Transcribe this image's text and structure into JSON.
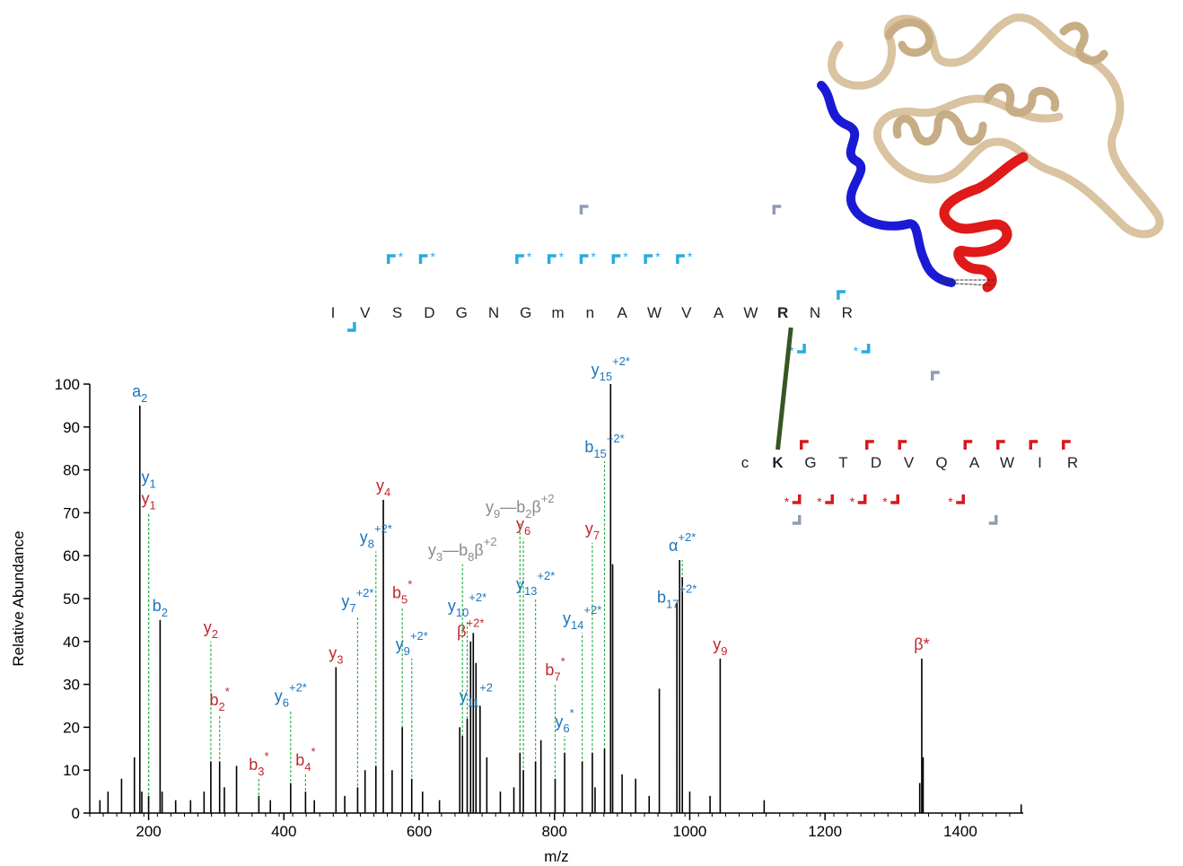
{
  "chart_data": {
    "type": "spectrum",
    "xlabel": "m/z",
    "ylabel": "Relative Abundance",
    "xlim": [
      113,
      1493
    ],
    "ylim": [
      0,
      100
    ],
    "xticks": [
      200,
      400,
      600,
      800,
      1000,
      1200,
      1400
    ],
    "yticks": [
      0,
      10,
      20,
      30,
      40,
      50,
      60,
      70,
      80,
      90,
      100
    ],
    "color": "#000000",
    "annotation_line_color": "#33b552",
    "x": [
      128,
      140,
      160,
      179,
      187,
      190,
      200,
      217,
      220,
      240,
      262,
      282,
      292,
      305,
      312,
      330,
      363,
      380,
      410,
      432,
      445,
      477,
      490,
      509,
      520,
      536,
      547,
      560,
      575,
      589,
      605,
      630,
      660,
      664,
      671,
      676,
      680,
      684,
      690,
      700,
      720,
      740,
      749,
      754,
      772,
      780,
      801,
      815,
      841,
      856,
      860,
      874,
      883,
      886,
      900,
      920,
      940,
      955,
      981,
      985,
      989,
      1000,
      1030,
      1045,
      1110,
      1340,
      1343,
      1345,
      1490
    ],
    "values": [
      3,
      5,
      8,
      13,
      95,
      5,
      4,
      45,
      5,
      3,
      3,
      5,
      12,
      12,
      6,
      11,
      4,
      3,
      7,
      5,
      3,
      34,
      4,
      6,
      10,
      11,
      73,
      10,
      20,
      8,
      5,
      3,
      20,
      18,
      22,
      40,
      42,
      35,
      25,
      13,
      5,
      6,
      14,
      10,
      12,
      17,
      8,
      14,
      12,
      14,
      6,
      15,
      100,
      58,
      9,
      8,
      4,
      29,
      49,
      59,
      55,
      5,
      4,
      36,
      3,
      7,
      36,
      13,
      2
    ],
    "annotations": [
      {
        "mz": 187,
        "abundance": 95,
        "color": "#1b75bc",
        "label": [
          {
            "text": "a"
          },
          {
            "sub": "2"
          }
        ]
      },
      {
        "mz": 200,
        "abundance": 70,
        "color": "#c1272d",
        "label": [
          {
            "text": "y"
          },
          {
            "sub": "1"
          }
        ]
      },
      {
        "mz": 200,
        "abundance": 70,
        "color": "#1b75bc",
        "label": [
          {
            "text": "y"
          },
          {
            "sub": "1"
          }
        ]
      },
      {
        "mz": 217,
        "abundance": 45,
        "color": "#1b75bc",
        "label": [
          {
            "text": "b"
          },
          {
            "sub": "2"
          }
        ]
      },
      {
        "mz": 292,
        "abundance": 40,
        "color": "#c1272d",
        "label": [
          {
            "text": "y"
          },
          {
            "sub": "2"
          }
        ]
      },
      {
        "mz": 305,
        "abundance": 23,
        "color": "#c1272d",
        "label": [
          {
            "text": "b"
          },
          {
            "sub": "2"
          },
          {
            "sup": "*"
          }
        ]
      },
      {
        "mz": 363,
        "abundance": 8,
        "color": "#c1272d",
        "label": [
          {
            "text": "b"
          },
          {
            "sub": "3"
          },
          {
            "sup": "*"
          }
        ]
      },
      {
        "mz": 410,
        "abundance": 24,
        "color": "#1b75bc",
        "label": [
          {
            "text": "y"
          },
          {
            "sub": "6"
          },
          {
            "sup": "+2*"
          }
        ]
      },
      {
        "mz": 432,
        "abundance": 9,
        "color": "#c1272d",
        "label": [
          {
            "text": "b"
          },
          {
            "sub": "4"
          },
          {
            "sup": "*"
          }
        ]
      },
      {
        "mz": 477,
        "abundance": 34,
        "color": "#c1272d",
        "label": [
          {
            "text": "y"
          },
          {
            "sub": "3"
          }
        ]
      },
      {
        "mz": 509,
        "abundance": 46,
        "color": "#1b75bc",
        "label": [
          {
            "text": "y"
          },
          {
            "sub": "7"
          },
          {
            "sup": "+2*"
          }
        ]
      },
      {
        "mz": 536,
        "abundance": 61,
        "color": "#1b75bc",
        "label": [
          {
            "text": "y"
          },
          {
            "sub": "8"
          },
          {
            "sup": "+2*"
          }
        ]
      },
      {
        "mz": 547,
        "abundance": 73,
        "color": "#c1272d",
        "label": [
          {
            "text": "y"
          },
          {
            "sub": "4"
          }
        ]
      },
      {
        "mz": 575,
        "abundance": 48,
        "color": "#c1272d",
        "label": [
          {
            "text": "b"
          },
          {
            "sub": "5"
          },
          {
            "sup": "*"
          }
        ]
      },
      {
        "mz": 589,
        "abundance": 36,
        "color": "#1b75bc",
        "label": [
          {
            "text": "y"
          },
          {
            "sub": "9"
          },
          {
            "sup": "+2*"
          }
        ]
      },
      {
        "mz": 664,
        "abundance": 58,
        "color": "#8a8a8a",
        "label": [
          {
            "text": "y"
          },
          {
            "sub": "3"
          },
          {
            "text": "—b"
          },
          {
            "sub": "8"
          },
          {
            "text": "β"
          },
          {
            "sup": "+2"
          }
        ]
      },
      {
        "mz": 671,
        "abundance": 45,
        "color": "#1b75bc",
        "label": [
          {
            "text": "y"
          },
          {
            "sub": "10"
          },
          {
            "sup": "+2*"
          }
        ]
      },
      {
        "mz": 676,
        "abundance": 39,
        "color": "#c1272d",
        "label": [
          {
            "text": "β"
          },
          {
            "sup": "+2*"
          }
        ]
      },
      {
        "mz": 684,
        "abundance": 24,
        "color": "#1b75bc",
        "label": [
          {
            "text": "y"
          },
          {
            "sub": "11"
          },
          {
            "sup": "+2"
          }
        ]
      },
      {
        "mz": 749,
        "abundance": 68,
        "color": "#8a8a8a",
        "label": [
          {
            "text": "y"
          },
          {
            "sub": "9"
          },
          {
            "text": "—b"
          },
          {
            "sub": "2"
          },
          {
            "text": "β"
          },
          {
            "sup": "+2"
          }
        ]
      },
      {
        "mz": 754,
        "abundance": 64,
        "color": "#c1272d",
        "label": [
          {
            "text": "y"
          },
          {
            "sub": "6"
          }
        ]
      },
      {
        "mz": 772,
        "abundance": 50,
        "color": "#1b75bc",
        "label": [
          {
            "text": "y"
          },
          {
            "sub": "13"
          },
          {
            "sup": "+2*"
          }
        ]
      },
      {
        "mz": 801,
        "abundance": 30,
        "color": "#c1272d",
        "label": [
          {
            "text": "b"
          },
          {
            "sub": "7"
          },
          {
            "sup": "*"
          }
        ]
      },
      {
        "mz": 815,
        "abundance": 18,
        "color": "#1b75bc",
        "label": [
          {
            "text": "y"
          },
          {
            "sub": "6"
          },
          {
            "sup": "*"
          }
        ]
      },
      {
        "mz": 841,
        "abundance": 42,
        "color": "#1b75bc",
        "label": [
          {
            "text": "y"
          },
          {
            "sub": "14"
          },
          {
            "sup": "+2*"
          }
        ]
      },
      {
        "mz": 856,
        "abundance": 63,
        "color": "#c1272d",
        "label": [
          {
            "text": "y"
          },
          {
            "sub": "7"
          }
        ]
      },
      {
        "mz": 874,
        "abundance": 82,
        "color": "#1b75bc",
        "label": [
          {
            "text": "b"
          },
          {
            "sub": "15"
          },
          {
            "sup": "+2*"
          }
        ]
      },
      {
        "mz": 883,
        "abundance": 100,
        "color": "#1b75bc",
        "label": [
          {
            "text": "y"
          },
          {
            "sub": "15"
          },
          {
            "sup": "+2*"
          }
        ]
      },
      {
        "mz": 981,
        "abundance": 47,
        "color": "#1b75bc",
        "label": [
          {
            "text": "b"
          },
          {
            "sub": "17"
          },
          {
            "sup": "+2*"
          }
        ]
      },
      {
        "mz": 989,
        "abundance": 59,
        "color": "#1b75bc",
        "label": [
          {
            "text": "α"
          },
          {
            "sup": "+2*"
          }
        ]
      },
      {
        "mz": 1045,
        "abundance": 36,
        "color": "#c1272d",
        "label": [
          {
            "text": "y"
          },
          {
            "sub": "9"
          }
        ]
      },
      {
        "mz": 1343,
        "abundance": 36,
        "color": "#c1272d",
        "label": [
          {
            "text": "β*"
          }
        ]
      }
    ]
  },
  "peptides": [
    {
      "residues": [
        "I",
        "V",
        "S",
        "D",
        "G",
        "N",
        "G",
        "m",
        "n",
        "A",
        "W",
        "V",
        "A",
        "W",
        "R",
        "N",
        "R"
      ],
      "bold": 14,
      "above": [
        {
          "color": "#29abe2",
          "after": [
            15
          ]
        },
        {
          "color": "#29abe2",
          "star": "*",
          "after": [
            1,
            2,
            5,
            6,
            7,
            8,
            9,
            10
          ]
        },
        {
          "color": "#8e9db5",
          "after": [
            7,
            13
          ]
        }
      ],
      "below": [
        {
          "color": "#29abe2",
          "after": [
            0
          ]
        },
        {
          "color": "#29abe2",
          "star": "*",
          "after": [
            14,
            16
          ]
        }
      ]
    },
    {
      "residues": [
        "c",
        "K",
        "G",
        "T",
        "D",
        "V",
        "Q",
        "A",
        "W",
        "I",
        "R"
      ],
      "bold": 1,
      "above": [
        {
          "color": "#d7191c",
          "after": [
            1,
            3,
            4,
            6,
            7,
            8,
            9
          ]
        },
        {
          "color": "#8e9db5",
          "after": [
            5
          ]
        }
      ],
      "below": [
        {
          "color": "#d7191c",
          "star": "*",
          "after": [
            1,
            2,
            3,
            4,
            6
          ]
        },
        {
          "color": "#8e9db5",
          "after": [
            1,
            7
          ]
        }
      ]
    }
  ],
  "crosslink": {
    "from": [
      0,
      14
    ],
    "to": [
      1,
      1
    ],
    "color": "#375623"
  }
}
